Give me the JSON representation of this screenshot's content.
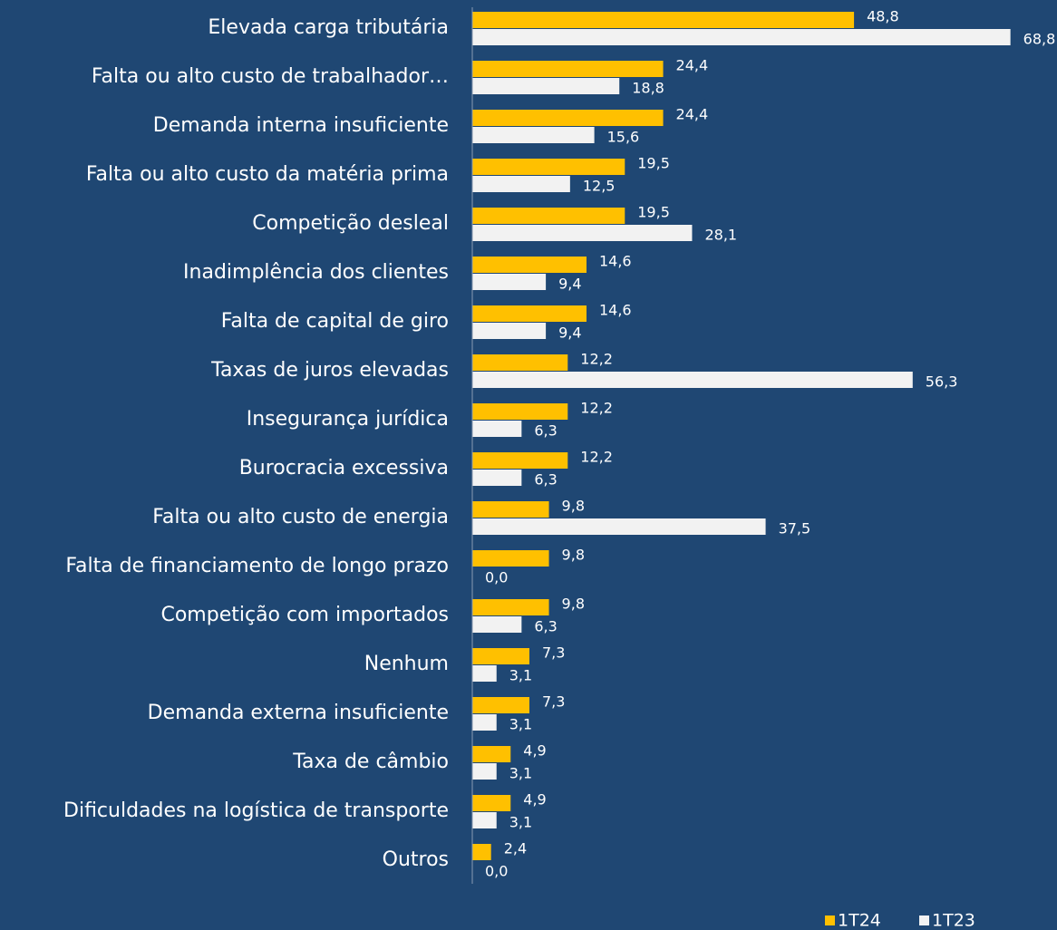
{
  "chart_data": {
    "type": "bar",
    "orientation": "horizontal",
    "categories": [
      "Elevada carga tributária",
      "Falta ou alto custo de trabalhador…",
      "Demanda interna insuficiente",
      "Falta ou alto custo da matéria prima",
      "Competição desleal",
      "Inadimplência dos clientes",
      "Falta de capital de giro",
      "Taxas de juros elevadas",
      "Insegurança jurídica",
      "Burocracia excessiva",
      "Falta ou alto custo de energia",
      "Falta de financiamento de longo prazo",
      "Competição com importados",
      "Nenhum",
      "Demanda externa insuficiente",
      "Taxa de câmbio",
      "Dificuldades na logística de transporte",
      "Outros"
    ],
    "series": [
      {
        "name": "1T24",
        "color": "#ffc000",
        "values": [
          48.8,
          24.4,
          24.4,
          19.5,
          19.5,
          14.6,
          14.6,
          12.2,
          12.2,
          12.2,
          9.8,
          9.8,
          9.8,
          7.3,
          7.3,
          4.9,
          4.9,
          2.4
        ],
        "value_labels": [
          "48,8",
          "24,4",
          "24,4",
          "19,5",
          "19,5",
          "14,6",
          "14,6",
          "12,2",
          "12,2",
          "12,2",
          "9,8",
          "9,8",
          "9,8",
          "7,3",
          "7,3",
          "4,9",
          "4,9",
          "2,4"
        ]
      },
      {
        "name": "1T23",
        "color": "#f2f2f2",
        "values": [
          68.8,
          18.8,
          15.6,
          12.5,
          28.1,
          9.4,
          9.4,
          56.3,
          6.3,
          6.3,
          37.5,
          0.0,
          6.3,
          3.1,
          3.1,
          3.1,
          3.1,
          0.0
        ],
        "value_labels": [
          "68,8",
          "18,8",
          "15,6",
          "12,5",
          "28,1",
          "9,4",
          "9,4",
          "56,3",
          "6,3",
          "6,3",
          "37,5",
          "0,0",
          "6,3",
          "3,1",
          "3,1",
          "3,1",
          "3,1",
          "0,0"
        ]
      }
    ],
    "xlim": [
      0,
      70
    ],
    "legend": "bottom-right"
  }
}
